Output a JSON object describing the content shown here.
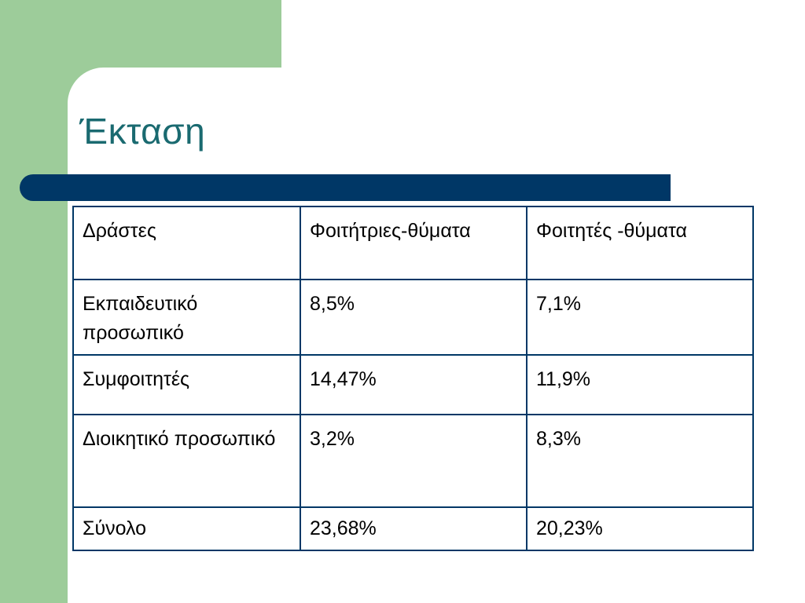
{
  "slide": {
    "title": "Έκταση",
    "colors": {
      "accent_green": "#9dcc9a",
      "navy": "#003766",
      "title_teal": "#1a6a70"
    }
  },
  "table": {
    "headers": [
      "Δράστες",
      "Φοιτήτριες-θύματα",
      "Φοιτητές -θύματα"
    ],
    "rows": [
      [
        "Εκπαιδευτικό προσωπικό",
        "8,5%",
        "7,1%"
      ],
      [
        "Συμφοιτητές",
        "14,47%",
        "11,9%"
      ],
      [
        "Διοικητικό προσωπικό",
        "3,2%",
        "8,3%"
      ],
      [
        "Σύνολο",
        "23,68%",
        "20,23%"
      ]
    ]
  }
}
